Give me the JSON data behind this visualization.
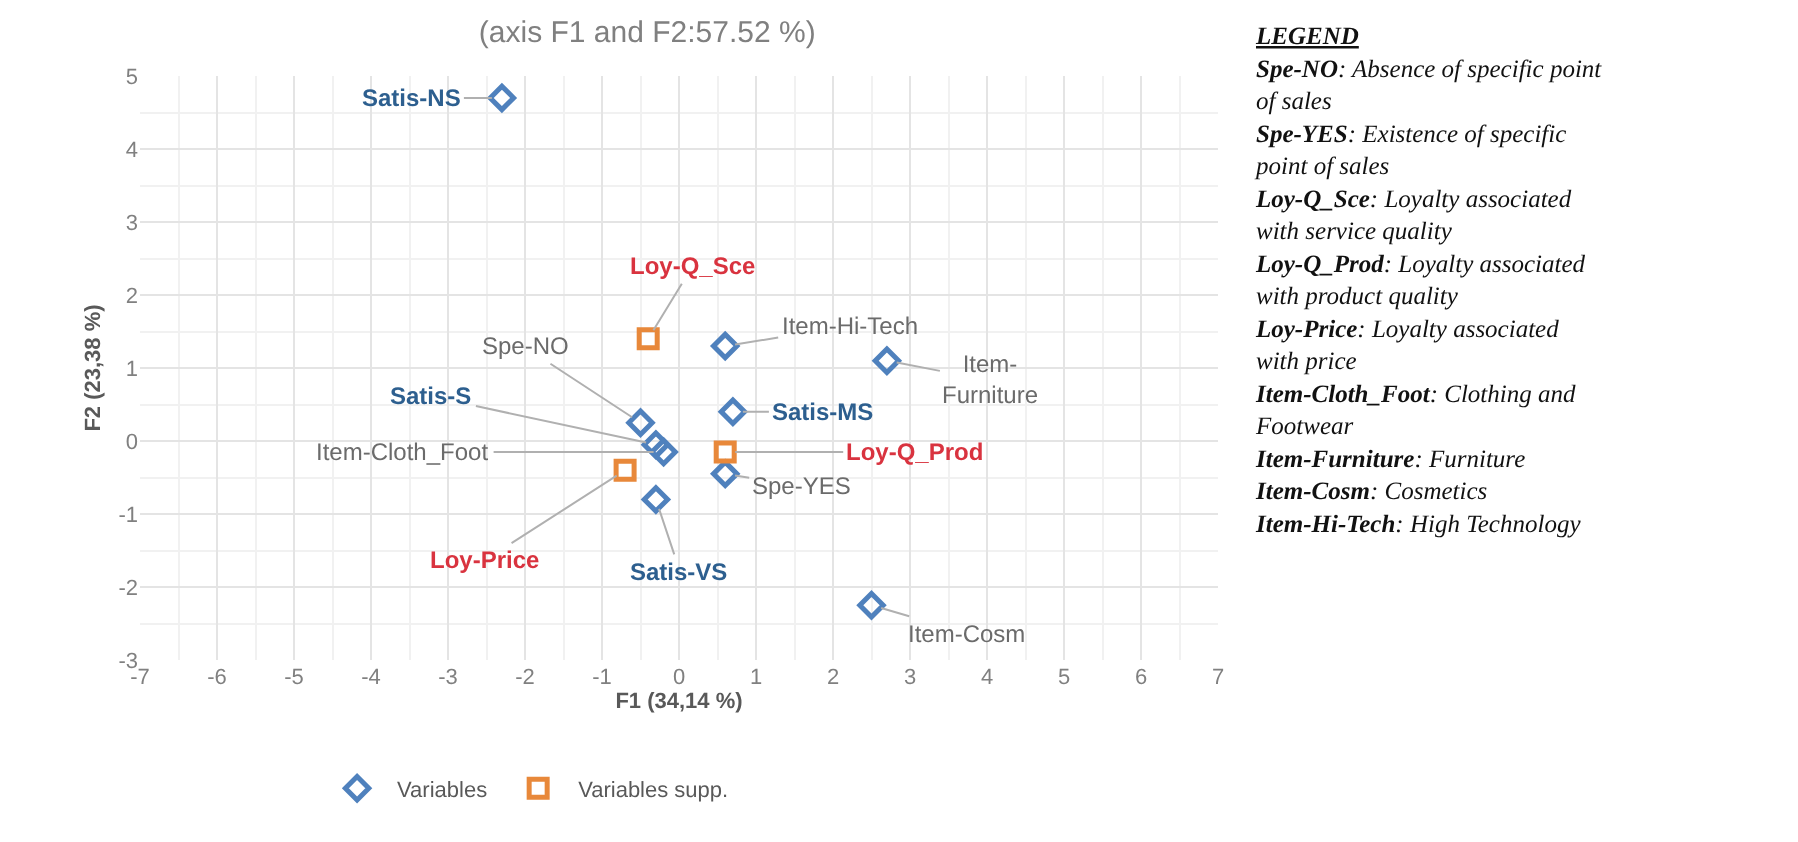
{
  "chart_data": [
    {
      "type": "scatter",
      "title": "(axis F1 and F2:57.52 %)",
      "xlabel": "F1 (34,14 %)",
      "ylabel": "F2 (23,38 %)",
      "series": [
        {
          "name": "Variables",
          "color": "#4f81bd",
          "marker": "diamond",
          "x": [
            -2.3,
            -0.5,
            0.6,
            2.7,
            -0.3,
            -0.2,
            0.7,
            0.6,
            -0.3,
            2.5
          ],
          "values": [
            4.7,
            0.25,
            1.3,
            1.1,
            -0.05,
            -0.15,
            0.4,
            -0.45,
            -0.8,
            -2.25
          ]
        },
        {
          "name": "Variables supp.",
          "color": "#e8883a",
          "marker": "square",
          "x": [
            -0.4,
            0.6,
            -0.7
          ],
          "values": [
            1.4,
            -0.15,
            -0.4
          ]
        }
      ],
      "annotations": [
        {
          "text": "Satis-NS",
          "x": -2.3,
          "y": 4.7
        },
        {
          "text": "Loy-Q_Sce",
          "x": -0.4,
          "y": 1.4
        },
        {
          "text": "Spe-NO",
          "x": -0.5,
          "y": 0.25
        },
        {
          "text": "Item-Hi-Tech",
          "x": 0.6,
          "y": 1.3
        },
        {
          "text": "Item-Furniture",
          "x": 2.7,
          "y": 1.1
        },
        {
          "text": "Satis-S",
          "x": -0.3,
          "y": -0.05
        },
        {
          "text": "Item-Cloth_Foot",
          "x": -0.2,
          "y": -0.15
        },
        {
          "text": "Satis-MS",
          "x": 0.7,
          "y": 0.4
        },
        {
          "text": "Loy-Q_Prod",
          "x": 0.6,
          "y": -0.15
        },
        {
          "text": "Spe-YES",
          "x": 0.6,
          "y": -0.45
        },
        {
          "text": "Loy-Price",
          "x": -0.7,
          "y": -0.4
        },
        {
          "text": "Satis-VS",
          "x": -0.3,
          "y": -0.8
        },
        {
          "text": "Item-Cosm",
          "x": 2.5,
          "y": -2.25
        }
      ],
      "xlim": [
        -7,
        7
      ],
      "xticks": [
        -7,
        -6,
        -5,
        -4,
        -3,
        -2,
        -1,
        0,
        1,
        2,
        3,
        4,
        5,
        6,
        7
      ],
      "ylim": [
        -3,
        5
      ],
      "yticks": [
        -3,
        -2,
        -1,
        0,
        1,
        2,
        3,
        4,
        5
      ],
      "grid": true,
      "legend": "bottom"
    },
    {
      "type": "other",
      "title": "LEGEND",
      "annotations": [
        "Spe-NO: Absence of specific point of sales",
        "Spe-YES: Existence of specific point of sales",
        "Loy-Q_Sce: Loyalty associated with service quality",
        "Loy-Q_Prod: Loyalty associated with product quality",
        "Loy-Price: Loyalty associated with price",
        "Item-Cloth_Foot: Clothing and Footwear",
        "Item-Furniture: Furniture",
        "Item-Cosm: Cosmetics",
        "Item-Hi-Tech: High Technology"
      ]
    }
  ]
}
